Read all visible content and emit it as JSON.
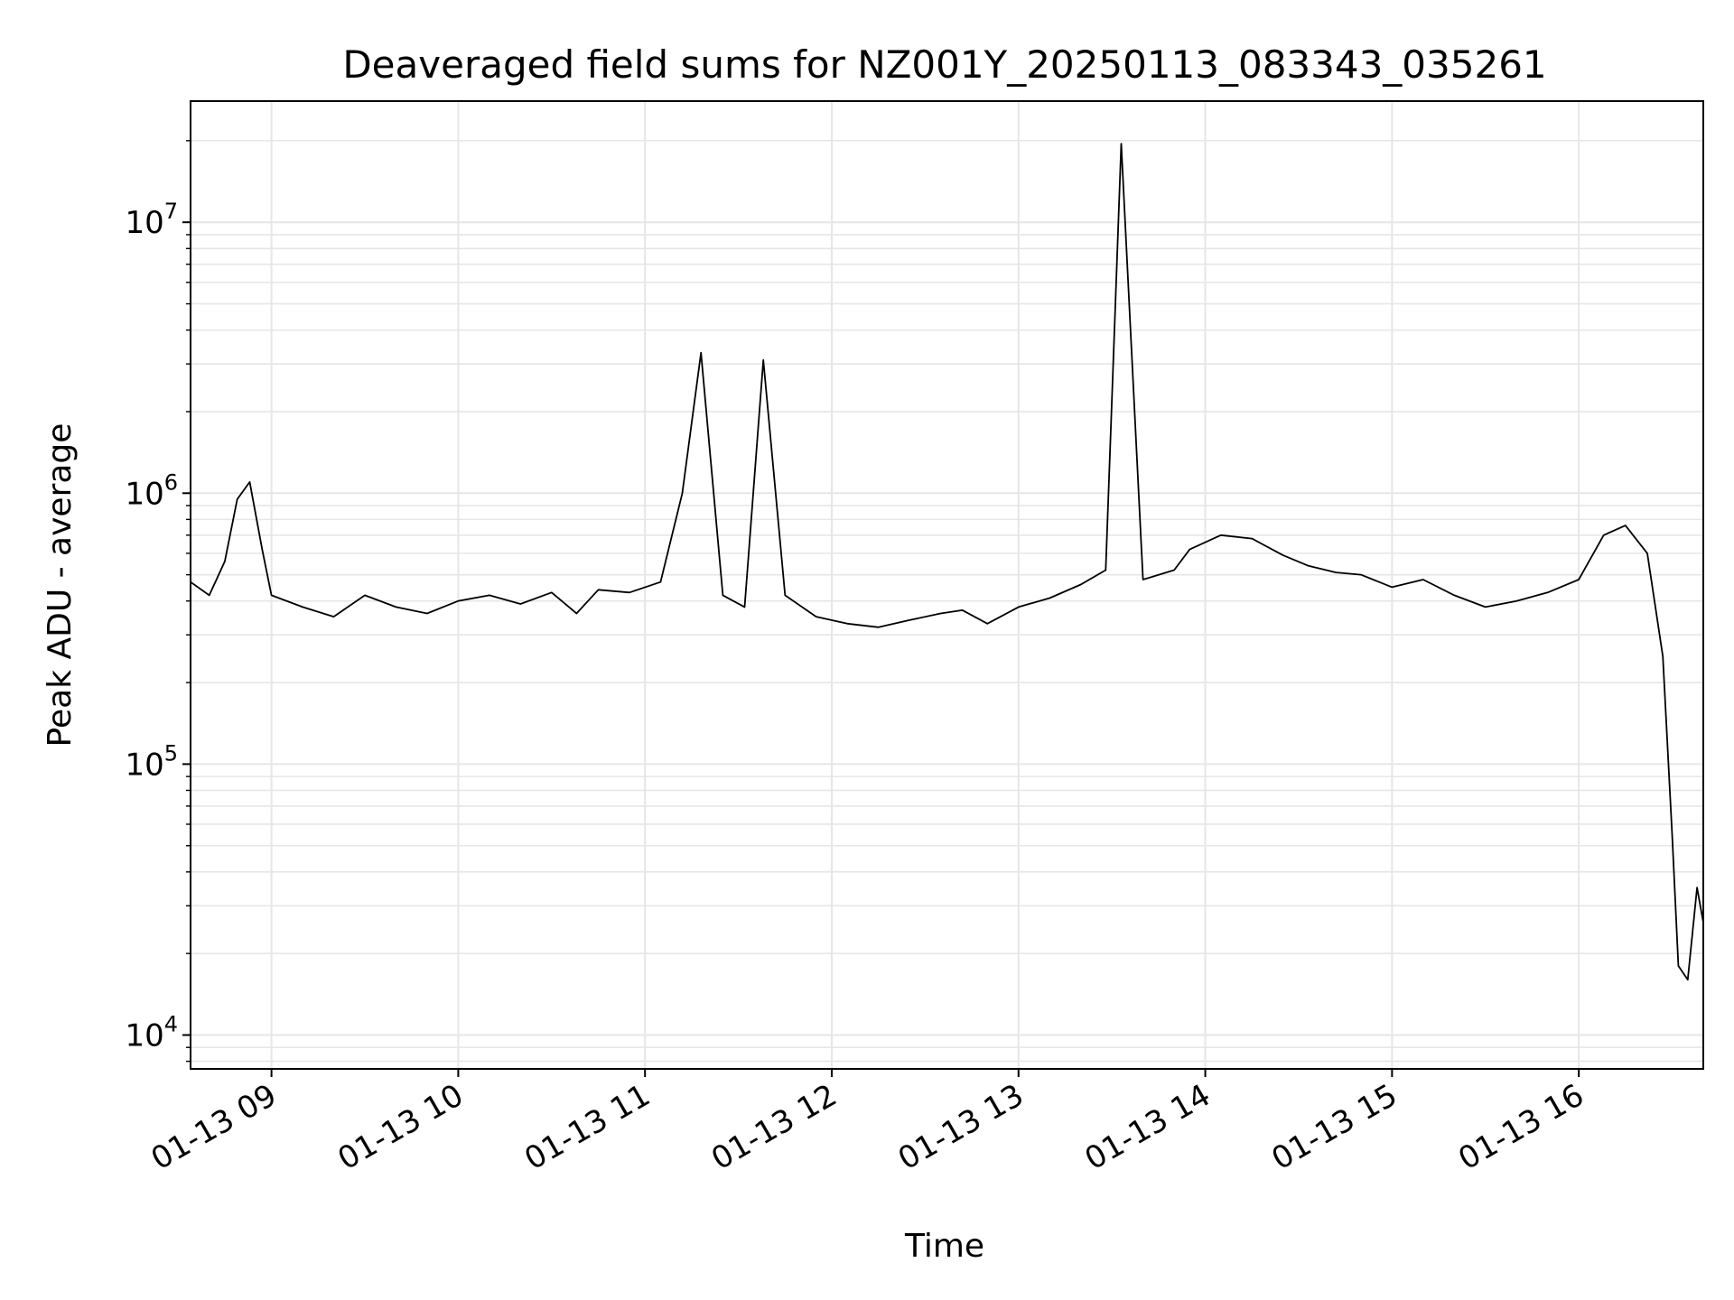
{
  "chart_data": {
    "type": "line",
    "title": "Deaveraged field sums for NZ001Y_20250113_083343_035261",
    "xlabel": "Time",
    "ylabel": "Peak ADU - average",
    "yscale": "log",
    "ylim": [
      7500,
      28000000
    ],
    "xlim": [
      "2025-01-13 08:34",
      "2025-01-13 16:40"
    ],
    "grid": true,
    "line_color": "#000000",
    "grid_color": "#e6e6e6",
    "x_tick_labels": [
      "01-13 09",
      "01-13 10",
      "01-13 11",
      "01-13 12",
      "01-13 13",
      "01-13 14",
      "01-13 15",
      "01-13 16"
    ],
    "x_tick_values": [
      "2025-01-13 09:00",
      "2025-01-13 10:00",
      "2025-01-13 11:00",
      "2025-01-13 12:00",
      "2025-01-13 13:00",
      "2025-01-13 14:00",
      "2025-01-13 15:00",
      "2025-01-13 16:00"
    ],
    "y_ticks": [
      {
        "value": 10000,
        "base": "10",
        "exp": "4"
      },
      {
        "value": 100000,
        "base": "10",
        "exp": "5"
      },
      {
        "value": 1000000,
        "base": "10",
        "exp": "6"
      },
      {
        "value": 10000000,
        "base": "10",
        "exp": "7"
      }
    ],
    "series": [
      {
        "x": [
          "2025-01-13 08:34",
          "2025-01-13 08:40",
          "2025-01-13 08:45",
          "2025-01-13 08:49",
          "2025-01-13 08:53",
          "2025-01-13 08:57",
          "2025-01-13 09:00",
          "2025-01-13 09:10",
          "2025-01-13 09:20",
          "2025-01-13 09:30",
          "2025-01-13 09:40",
          "2025-01-13 09:50",
          "2025-01-13 10:00",
          "2025-01-13 10:10",
          "2025-01-13 10:20",
          "2025-01-13 10:30",
          "2025-01-13 10:38",
          "2025-01-13 10:45",
          "2025-01-13 10:55",
          "2025-01-13 11:05",
          "2025-01-13 11:12",
          "2025-01-13 11:18",
          "2025-01-13 11:25",
          "2025-01-13 11:32",
          "2025-01-13 11:38",
          "2025-01-13 11:45",
          "2025-01-13 11:55",
          "2025-01-13 12:05",
          "2025-01-13 12:15",
          "2025-01-13 12:25",
          "2025-01-13 12:35",
          "2025-01-13 12:42",
          "2025-01-13 12:50",
          "2025-01-13 13:00",
          "2025-01-13 13:10",
          "2025-01-13 13:20",
          "2025-01-13 13:28",
          "2025-01-13 13:33",
          "2025-01-13 13:40",
          "2025-01-13 13:50",
          "2025-01-13 13:55",
          "2025-01-13 14:05",
          "2025-01-13 14:15",
          "2025-01-13 14:25",
          "2025-01-13 14:33",
          "2025-01-13 14:42",
          "2025-01-13 14:50",
          "2025-01-13 15:00",
          "2025-01-13 15:10",
          "2025-01-13 15:20",
          "2025-01-13 15:30",
          "2025-01-13 15:40",
          "2025-01-13 15:50",
          "2025-01-13 16:00",
          "2025-01-13 16:08",
          "2025-01-13 16:15",
          "2025-01-13 16:22",
          "2025-01-13 16:27",
          "2025-01-13 16:30",
          "2025-01-13 16:32",
          "2025-01-13 16:35",
          "2025-01-13 16:38",
          "2025-01-13 16:40"
        ],
        "y": [
          470000,
          420000,
          560000,
          950000,
          1100000,
          620000,
          420000,
          380000,
          350000,
          420000,
          380000,
          360000,
          400000,
          420000,
          390000,
          430000,
          360000,
          440000,
          430000,
          470000,
          1000000,
          3300000,
          420000,
          380000,
          3100000,
          420000,
          350000,
          330000,
          320000,
          340000,
          360000,
          370000,
          330000,
          380000,
          410000,
          460000,
          520000,
          19500000,
          480000,
          520000,
          620000,
          700000,
          680000,
          590000,
          540000,
          510000,
          500000,
          450000,
          480000,
          420000,
          380000,
          400000,
          430000,
          480000,
          700000,
          760000,
          600000,
          250000,
          55000,
          18000,
          16000,
          35000,
          26000
        ]
      }
    ]
  }
}
